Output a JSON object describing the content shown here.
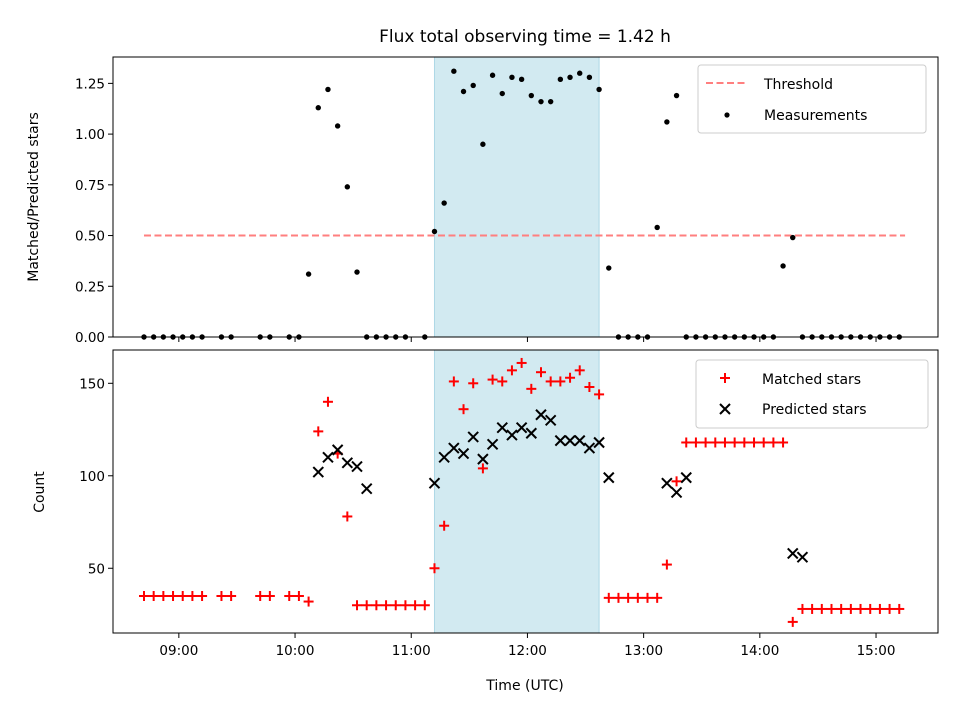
{
  "colors": {
    "threshold": "#ff7f7f",
    "measurements": "#000000",
    "matched": "#ff0000",
    "predicted": "#000000",
    "observing_window": "#add8e6"
  },
  "chart_data": [
    {
      "type": "scatter",
      "title": "Flux total observing time = 1.42 h",
      "xlabel": "",
      "ylabel": "Matched/Predicted stars",
      "xlim": [
        "08:26",
        "15:32"
      ],
      "ylim": [
        0,
        1.38
      ],
      "yticks": [
        "0.00",
        "0.25",
        "0.50",
        "0.75",
        "1.00",
        "1.25"
      ],
      "grid": false,
      "legend": "top-right",
      "shaded_span": [
        "11:12",
        "12:37"
      ],
      "series": [
        {
          "name": "Threshold",
          "style": "dashed-line",
          "x": [
            "08:42",
            "15:15"
          ],
          "y": [
            0.5,
            0.5
          ]
        },
        {
          "name": "Measurements",
          "style": "dot",
          "x": [
            "08:42",
            "08:47",
            "08:52",
            "08:57",
            "09:02",
            "09:07",
            "09:12",
            "09:22",
            "09:27",
            "09:42",
            "09:47",
            "09:57",
            "10:02",
            "10:07",
            "10:12",
            "10:17",
            "10:22",
            "10:27",
            "10:32",
            "10:37",
            "10:42",
            "10:47",
            "10:52",
            "10:57",
            "11:07",
            "11:12",
            "11:17",
            "11:22",
            "11:27",
            "11:32",
            "11:37",
            "11:42",
            "11:47",
            "11:52",
            "11:57",
            "12:02",
            "12:07",
            "12:12",
            "12:17",
            "12:22",
            "12:27",
            "12:32",
            "12:37",
            "12:42",
            "12:47",
            "12:52",
            "12:57",
            "13:02",
            "13:07",
            "13:12",
            "13:17",
            "13:22",
            "13:27",
            "13:32",
            "13:37",
            "13:42",
            "13:47",
            "13:52",
            "13:57",
            "14:02",
            "14:07",
            "14:12",
            "14:17",
            "14:22",
            "14:27",
            "14:32",
            "14:37",
            "14:42",
            "14:47",
            "14:52",
            "14:57",
            "15:02",
            "15:07",
            "15:12"
          ],
          "y": [
            0,
            0,
            0,
            0,
            0,
            0,
            0,
            0,
            0,
            0,
            0,
            0,
            0,
            0.31,
            1.13,
            1.22,
            1.04,
            0.74,
            0.32,
            0,
            0,
            0,
            0,
            0,
            0,
            0.52,
            0.66,
            1.31,
            1.21,
            1.24,
            0.95,
            1.29,
            1.2,
            1.28,
            1.27,
            1.19,
            1.16,
            1.16,
            1.27,
            1.28,
            1.3,
            1.28,
            1.22,
            0.34,
            0,
            0,
            0,
            0,
            0.54,
            1.06,
            1.19,
            0,
            0,
            0,
            0,
            0,
            0,
            0,
            0,
            0,
            0,
            0.35,
            0.49,
            0,
            0,
            0,
            0,
            0,
            0,
            0,
            0,
            0,
            0,
            0
          ]
        }
      ]
    },
    {
      "type": "scatter",
      "title": "",
      "xlabel": "Time (UTC)",
      "ylabel": "Count",
      "xlim": [
        "08:26",
        "15:32"
      ],
      "ylim": [
        15,
        168
      ],
      "yticks": [
        "50",
        "100",
        "150"
      ],
      "xticks": [
        "09:00",
        "10:00",
        "11:00",
        "12:00",
        "13:00",
        "14:00",
        "15:00"
      ],
      "grid": false,
      "legend": "top-right",
      "shaded_span": [
        "11:12",
        "12:37"
      ],
      "series": [
        {
          "name": "Matched stars",
          "style": "plus",
          "x": [
            "08:42",
            "08:47",
            "08:52",
            "08:57",
            "09:02",
            "09:07",
            "09:12",
            "09:22",
            "09:27",
            "09:42",
            "09:47",
            "09:57",
            "10:02",
            "10:07",
            "10:12",
            "10:17",
            "10:22",
            "10:27",
            "10:32",
            "10:37",
            "10:42",
            "10:47",
            "10:52",
            "10:57",
            "11:02",
            "11:07",
            "11:12",
            "11:17",
            "11:22",
            "11:27",
            "11:32",
            "11:37",
            "11:42",
            "11:47",
            "11:52",
            "11:57",
            "12:02",
            "12:07",
            "12:12",
            "12:17",
            "12:22",
            "12:27",
            "12:32",
            "12:37",
            "12:42",
            "12:47",
            "12:52",
            "12:57",
            "13:02",
            "13:07",
            "13:12",
            "13:17",
            "13:22",
            "13:27",
            "13:32",
            "13:37",
            "13:42",
            "13:47",
            "13:52",
            "13:57",
            "14:02",
            "14:07",
            "14:12",
            "14:17",
            "14:22",
            "14:27",
            "14:32",
            "14:37",
            "14:42",
            "14:47",
            "14:52",
            "14:57",
            "15:02",
            "15:07",
            "15:12"
          ],
          "y": [
            35,
            35,
            35,
            35,
            35,
            35,
            35,
            35,
            35,
            35,
            35,
            35,
            35,
            32,
            124,
            140,
            112,
            78,
            30,
            30,
            30,
            30,
            30,
            30,
            30,
            30,
            50,
            73,
            151,
            136,
            150,
            104,
            152,
            151,
            157,
            161,
            147,
            156,
            151,
            151,
            153,
            157,
            148,
            144,
            34,
            34,
            34,
            34,
            34,
            34,
            52,
            97,
            118,
            118,
            118,
            118,
            118,
            118,
            118,
            118,
            118,
            118,
            118,
            21,
            28,
            28,
            28,
            28,
            28,
            28,
            28,
            28,
            28,
            28,
            28
          ]
        },
        {
          "name": "Predicted stars",
          "style": "x",
          "x": [
            "10:12",
            "10:17",
            "10:22",
            "10:27",
            "10:32",
            "10:37",
            "11:12",
            "11:17",
            "11:22",
            "11:27",
            "11:32",
            "11:37",
            "11:42",
            "11:47",
            "11:52",
            "11:57",
            "12:02",
            "12:07",
            "12:12",
            "12:17",
            "12:22",
            "12:27",
            "12:32",
            "12:37",
            "12:42",
            "13:12",
            "13:17",
            "13:22",
            "14:17",
            "14:22"
          ],
          "y": [
            102,
            110,
            114,
            107,
            105,
            93,
            96,
            110,
            115,
            112,
            121,
            109,
            117,
            126,
            122,
            126,
            123,
            133,
            130,
            119,
            119,
            119,
            115,
            118,
            99,
            96,
            91,
            99,
            58,
            56
          ]
        }
      ]
    }
  ]
}
